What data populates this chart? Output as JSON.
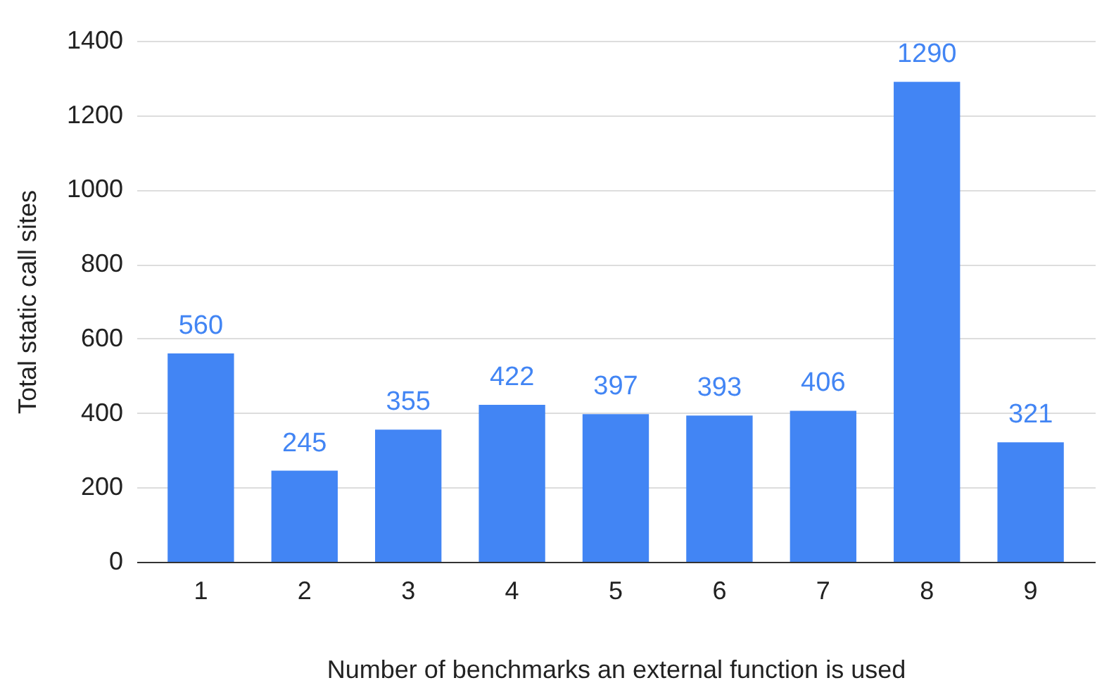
{
  "chart_data": {
    "type": "bar",
    "xlabel": "Number of benchmarks an external function is used",
    "ylabel": "Total static call sites",
    "categories": [
      "1",
      "2",
      "3",
      "4",
      "5",
      "6",
      "7",
      "8",
      "9"
    ],
    "values": [
      560,
      245,
      355,
      422,
      397,
      393,
      406,
      1290,
      321
    ],
    "color": "#4285f4",
    "ylim": [
      0,
      1400
    ],
    "yticks": [
      0,
      200,
      400,
      600,
      800,
      1000,
      1200,
      1400
    ],
    "grid": "y",
    "data_labels": true
  }
}
